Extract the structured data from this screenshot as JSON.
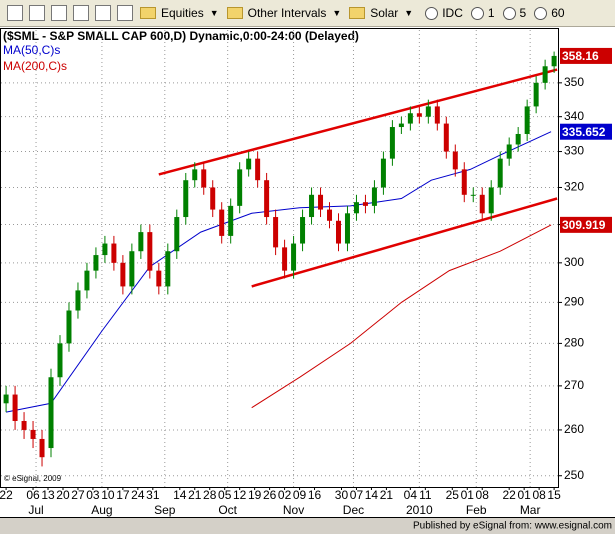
{
  "toolbar": {
    "items": [
      "Equities",
      "Other Intervals",
      "Solar",
      "IDC",
      "1",
      "5",
      "60"
    ]
  },
  "chart_data": {
    "type": "candlestick",
    "title": "($SML - S&P SMALL CAP 600,D) Dynamic,0:00-24:00 (Delayed)",
    "copyright": "© eSignal, 2009",
    "publisher": "Published by eSignal from: www.esignal.com",
    "up_color": "#008000",
    "down_color": "#cc0000",
    "x": [
      0,
      3,
      6,
      9,
      12,
      15,
      18,
      21,
      24,
      27,
      30,
      33,
      36,
      39,
      42,
      45,
      48,
      51,
      54,
      57,
      60,
      63,
      66,
      69,
      72,
      75,
      78,
      81,
      84,
      87,
      90,
      93,
      96,
      99,
      102,
      105,
      108,
      111,
      114,
      117,
      120,
      123,
      126,
      129,
      132,
      135,
      138,
      141,
      144,
      147,
      150,
      153,
      156,
      159,
      162,
      165,
      168,
      171,
      174,
      177,
      180,
      183
    ],
    "open": [
      266,
      268,
      262,
      260,
      258,
      256,
      272,
      280,
      288,
      293,
      298,
      302,
      305,
      300,
      294,
      303,
      308,
      298,
      294,
      303,
      312,
      322,
      325,
      320,
      314,
      307,
      315,
      325,
      328,
      322,
      312,
      304,
      298,
      305,
      312,
      318,
      314,
      311,
      305,
      313,
      316,
      315,
      320,
      328,
      337,
      338,
      341,
      340,
      343,
      338,
      330,
      325,
      318,
      318,
      313,
      320,
      328,
      332,
      335,
      343,
      350,
      355
    ],
    "high": [
      270,
      270,
      264,
      262,
      260,
      274,
      282,
      290,
      295,
      300,
      304,
      307,
      307,
      302,
      305,
      310,
      310,
      300,
      305,
      314,
      324,
      327,
      327,
      322,
      316,
      317,
      327,
      330,
      330,
      324,
      314,
      306,
      307,
      314,
      320,
      320,
      316,
      313,
      315,
      318,
      318,
      322,
      330,
      339,
      340,
      343,
      343,
      345,
      345,
      340,
      332,
      327,
      320,
      320,
      322,
      330,
      334,
      337,
      345,
      352,
      357,
      359.5
    ],
    "low": [
      264,
      260,
      258,
      256,
      252,
      254,
      270,
      278,
      286,
      291,
      296,
      300,
      298,
      292,
      292,
      301,
      296,
      292,
      292,
      301,
      310,
      320,
      318,
      312,
      305,
      305,
      313,
      323,
      320,
      310,
      302,
      296,
      296,
      303,
      310,
      312,
      309,
      303,
      303,
      311,
      313,
      313,
      318,
      326,
      335,
      336,
      338,
      338,
      336,
      328,
      323,
      316,
      316,
      311,
      311,
      318,
      326,
      330,
      333,
      341,
      348,
      353
    ],
    "close": [
      268,
      262,
      260,
      258,
      254,
      272,
      280,
      288,
      293,
      298,
      302,
      305,
      300,
      294,
      303,
      308,
      298,
      294,
      303,
      312,
      322,
      325,
      320,
      314,
      307,
      315,
      325,
      328,
      322,
      312,
      304,
      298,
      305,
      312,
      318,
      314,
      311,
      305,
      313,
      316,
      315,
      320,
      328,
      337,
      338,
      341,
      340,
      343,
      338,
      330,
      325,
      318,
      318,
      313,
      320,
      328,
      332,
      335,
      343,
      350,
      355,
      358.16
    ],
    "studies": [
      {
        "name": "MA(50,C)s",
        "color": "#0000cc",
        "x": [
          0,
          15,
          32,
          48,
          65,
          82,
          98,
          115,
          132,
          142,
          155,
          165,
          182
        ],
        "values": [
          264,
          266,
          283,
          299,
          308,
          313,
          314.5,
          315,
          317,
          322,
          325,
          329,
          335.652
        ]
      },
      {
        "name": "MA(200,C)s",
        "color": "#cc0000",
        "x": [
          82,
          98,
          115,
          132,
          148,
          165,
          182
        ],
        "values": [
          265,
          272,
          280,
          290,
          298,
          303,
          309.919
        ]
      }
    ],
    "trendlines": [
      {
        "color": "#e00000",
        "x": [
          51,
          184
        ],
        "values": [
          323.6,
          354
        ]
      },
      {
        "color": "#e00000",
        "x": [
          82,
          184
        ],
        "values": [
          294,
          317
        ]
      }
    ],
    "log_scale": true,
    "grid": true,
    "ylim": [
      247.6,
      366.2
    ],
    "yticks": [
      250,
      260,
      270,
      280,
      290,
      300,
      310,
      320,
      330,
      340,
      350
    ],
    "xlim": [
      -1.7,
      184.3
    ],
    "xticks": [
      {
        "value": 0,
        "label": "22"
      },
      {
        "value": 9,
        "label": "06"
      },
      {
        "value": 14,
        "label": "13"
      },
      {
        "value": 19,
        "label": "20"
      },
      {
        "value": 24,
        "label": "27"
      },
      {
        "value": 29,
        "label": "03"
      },
      {
        "value": 34,
        "label": "10"
      },
      {
        "value": 39,
        "label": "17"
      },
      {
        "value": 44,
        "label": "24"
      },
      {
        "value": 49,
        "label": "31"
      },
      {
        "value": 58,
        "label": "14"
      },
      {
        "value": 63,
        "label": "21"
      },
      {
        "value": 68,
        "label": "28"
      },
      {
        "value": 73,
        "label": "05"
      },
      {
        "value": 78,
        "label": "12"
      },
      {
        "value": 83,
        "label": "19"
      },
      {
        "value": 88,
        "label": "26"
      },
      {
        "value": 93,
        "label": "02"
      },
      {
        "value": 98,
        "label": "09"
      },
      {
        "value": 103,
        "label": "16"
      },
      {
        "value": 112,
        "label": "30"
      },
      {
        "value": 117,
        "label": "07"
      },
      {
        "value": 122,
        "label": "14"
      },
      {
        "value": 127,
        "label": "21"
      },
      {
        "value": 135,
        "label": "04"
      },
      {
        "value": 140,
        "label": "11"
      },
      {
        "value": 149,
        "label": "25"
      },
      {
        "value": 154,
        "label": "01"
      },
      {
        "value": 159,
        "label": "08"
      },
      {
        "value": 168,
        "label": "22"
      },
      {
        "value": 173,
        "label": "01"
      },
      {
        "value": 178,
        "label": "08"
      },
      {
        "value": 183,
        "label": "15"
      }
    ],
    "month_ticks": [
      {
        "value": 10,
        "label": "Jul"
      },
      {
        "value": 32,
        "label": "Aug"
      },
      {
        "value": 53,
        "label": "Sep"
      },
      {
        "value": 74,
        "label": "Oct"
      },
      {
        "value": 96,
        "label": "Nov"
      },
      {
        "value": 116,
        "label": "Dec"
      },
      {
        "value": 138,
        "label": "2010"
      },
      {
        "value": 157,
        "label": "Feb"
      },
      {
        "value": 175,
        "label": "Mar"
      }
    ]
  }
}
